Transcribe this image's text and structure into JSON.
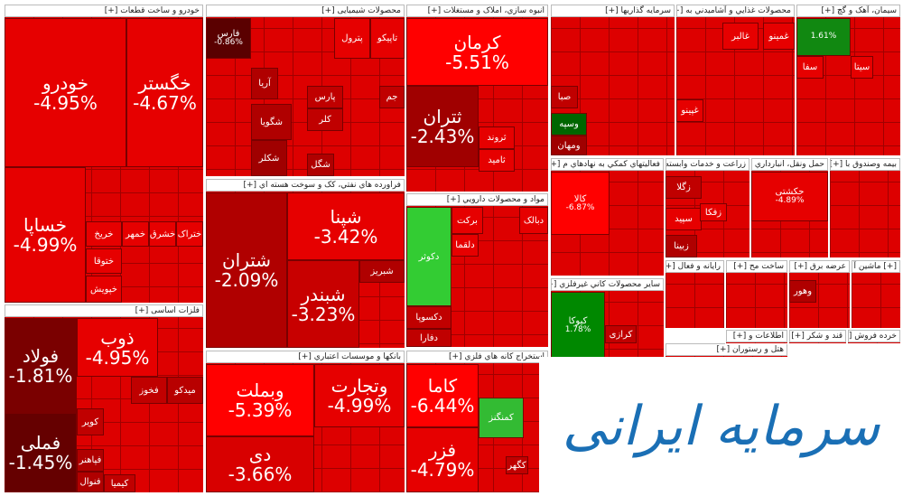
{
  "sectors": [
    {
      "title": "خودرو و ساخت قطعات [+]",
      "tiles": [
        {
          "label": "خودرو",
          "change": "-4.95%"
        },
        {
          "label": "خگستر",
          "change": "-4.67%"
        },
        {
          "label": "خساپا",
          "change": "-4.99%"
        },
        {
          "label": "خریخ"
        },
        {
          "label": "خمهر"
        },
        {
          "label": "ختوقا"
        },
        {
          "label": "خپویش"
        },
        {
          "label": "خشرق"
        },
        {
          "label": "ختراک"
        }
      ]
    },
    {
      "title": "فلزات اساسی [+]",
      "tiles": [
        {
          "label": "فولاد",
          "change": "-1.81%",
          "color": "#7a0000"
        },
        {
          "label": "فملی",
          "change": "-1.45%",
          "color": "#650000"
        },
        {
          "label": "ذوب",
          "change": "-4.95%"
        },
        {
          "label": "فخوز",
          "color": "#c00000"
        },
        {
          "label": "میدکو",
          "color": "#b80000"
        },
        {
          "label": "کویر",
          "color": "#c00000"
        },
        {
          "label": "فپاهنر",
          "color": "#b00000"
        },
        {
          "label": "کیمیا",
          "color": "#c00000"
        },
        {
          "label": "فنوال",
          "color": "#b00000"
        }
      ]
    },
    {
      "title": "محصولات شیمیایی [+]",
      "tiles": [
        {
          "label": "فارس",
          "change": "-0.86%",
          "color": "#5a0000"
        },
        {
          "label": "پترول"
        },
        {
          "label": "تاپیکو"
        },
        {
          "label": "آریا",
          "color": "#b00000"
        },
        {
          "label": "پارس",
          "color": "#c00000"
        },
        {
          "label": "شگویا",
          "color": "#b00000"
        },
        {
          "label": "شکلر",
          "color": "#a00000"
        },
        {
          "label": "شگل",
          "color": "#b00000"
        },
        {
          "label": "جم",
          "color": "#c00000"
        },
        {
          "label": "کلر",
          "color": "#c00000"
        }
      ]
    },
    {
      "title": "فراورده هاي نفتي، کک و سوخت هسته اي [+]",
      "tiles": [
        {
          "label": "شتران",
          "change": "-2.09%",
          "color": "#b00000"
        },
        {
          "label": "شپنا",
          "change": "-3.42%"
        },
        {
          "label": "شبندر",
          "change": "-3.23%",
          "color": "#c80000"
        },
        {
          "label": "شبریز",
          "color": "#b00000"
        }
      ]
    },
    {
      "title": "بانکها و موسسات اعتباري [+]",
      "tiles": [
        {
          "label": "وبملت",
          "change": "-5.39%",
          "color": "#ff0000"
        },
        {
          "label": "وتجارت",
          "change": "-4.99%"
        },
        {
          "label": "دی",
          "change": "-3.66%",
          "color": "#d80000"
        }
      ]
    },
    {
      "title": "انبوه سازي، املاک و مستغلات [+]",
      "tiles": [
        {
          "label": "کرمان",
          "change": "-5.51%",
          "color": "#ff0000"
        },
        {
          "label": "ثتران",
          "change": "-2.43%",
          "color": "#a00000"
        },
        {
          "label": "ثروند"
        },
        {
          "label": "ثامید"
        }
      ]
    },
    {
      "title": "مواد و محصولات دارويي [+]",
      "tiles": [
        {
          "label": "دکوثر",
          "color": "#33cc33"
        },
        {
          "label": "برکت"
        },
        {
          "label": "دبالک"
        },
        {
          "label": "دلقما"
        },
        {
          "label": "دکسوپا",
          "color": "#c00000"
        },
        {
          "label": "دفارا",
          "color": "#c00000"
        }
      ]
    },
    {
      "title": "استخراج کانه هاي فلزي [+]",
      "tiles": [
        {
          "label": "کاما",
          "change": "-6.44%",
          "color": "#ff0000"
        },
        {
          "label": "کمنگنز",
          "color": "#33bb33"
        },
        {
          "label": "فزر",
          "change": "-4.79%"
        },
        {
          "label": "کگهر",
          "color": "#c00000"
        }
      ]
    },
    {
      "title": "سرمايه گذاريها [+]",
      "tiles": [
        {
          "label": "صبا",
          "color": "#c00000"
        },
        {
          "label": "وسپه",
          "color": "#006600"
        },
        {
          "label": "ومهان",
          "color": "#a00000"
        }
      ]
    },
    {
      "title": "محصولات غذايي و آشاميدني به [+]",
      "tiles": [
        {
          "label": "غالبر"
        },
        {
          "label": "غمینو"
        },
        {
          "label": "غپینو"
        }
      ]
    },
    {
      "title": "سيمان، آهک و گچ [+]",
      "tiles": [
        {
          "change": "1.61%",
          "color": "#118811"
        },
        {
          "label": "سیتا"
        },
        {
          "label": "سفا"
        }
      ]
    },
    {
      "title": "فعاليتهاي کمکي به نهادهاي م [+]",
      "tiles": [
        {
          "label": "کالا",
          "change": "-6.87%",
          "color": "#ff0000"
        }
      ]
    },
    {
      "title": "زراعت و خدمات وابسته [+]",
      "tiles": [
        {
          "label": "زگلا",
          "color": "#c00000"
        },
        {
          "label": "سپید"
        },
        {
          "label": "زبینا",
          "color": "#b00000"
        },
        {
          "label": "زفکا"
        }
      ]
    },
    {
      "title": "حمل ونقل، انبارداري [+]",
      "tiles": [
        {
          "label": "حکشتی",
          "change": "-4.89%"
        }
      ]
    },
    {
      "title": "بيمه وصندوق با [+]",
      "tiles": []
    },
    {
      "title": "ساير محصولات کاني غيرفلزي [+]",
      "tiles": [
        {
          "label": "کیوکا",
          "change": "1.78%",
          "color": "#008800"
        },
        {
          "label": "کرازی",
          "color": "#c00000"
        }
      ]
    },
    {
      "title": "رايانه و فعال [+]",
      "tiles": []
    },
    {
      "title": "ساخت مح [+]",
      "tiles": []
    },
    {
      "title": "عرضه برق [+]",
      "tiles": [
        {
          "label": "وهور",
          "color": "#b00000"
        }
      ]
    },
    {
      "title": "[+] ماشين آ",
      "tiles": []
    },
    {
      "title": "هتل و رستوران [+]",
      "tiles": []
    },
    {
      "title": "اطلاعات و [+]",
      "tiles": []
    },
    {
      "title": "قند و شکر [+]",
      "tiles": []
    },
    {
      "title": "خرده فروش [+]",
      "tiles": []
    }
  ],
  "watermark": "سرمایه ایرانی"
}
